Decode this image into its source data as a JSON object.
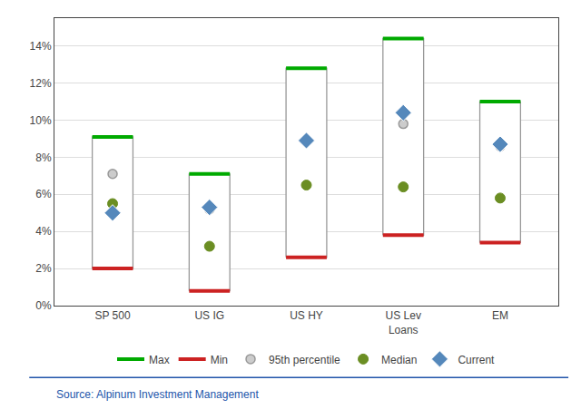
{
  "chart_data": {
    "type": "range",
    "categories": [
      "SP 500",
      "US IG",
      "US HY",
      "US Lev\nLoans",
      "EM"
    ],
    "color": "#999999",
    "series": [
      {
        "name": "Max",
        "color": "#00aa00",
        "values": [
          0.091,
          0.071,
          0.128,
          0.144,
          0.11
        ]
      },
      {
        "name": "Min",
        "color": "#cc2222",
        "values": [
          0.02,
          0.008,
          0.026,
          0.038,
          0.034
        ]
      },
      {
        "name": "95th percentile",
        "color": "#999999",
        "marker": "circle",
        "values": [
          0.071,
          0.052,
          0.089,
          0.098,
          0.086
        ]
      },
      {
        "name": "Median",
        "color": "#6b8e23",
        "marker": "circle",
        "values": [
          0.055,
          0.032,
          0.065,
          0.064,
          0.058
        ]
      },
      {
        "name": "Current",
        "color": "#5588bb",
        "marker": "diamond",
        "values": [
          0.05,
          0.053,
          0.089,
          0.104,
          0.087
        ]
      }
    ],
    "ylim": [
      0,
      0.155
    ],
    "yticks": [
      {
        "value": 0,
        "label": "0%"
      },
      {
        "value": 0.02,
        "label": "2%"
      },
      {
        "value": 0.04,
        "label": "4%"
      },
      {
        "value": 0.06,
        "label": "6%"
      },
      {
        "value": 0.08,
        "label": "8%"
      },
      {
        "value": 0.1,
        "label": "10%"
      },
      {
        "value": 0.12,
        "label": "12%"
      },
      {
        "value": 0.14,
        "label": "14%"
      }
    ],
    "grid": true,
    "legend": "bottom",
    "annotations": [
      {
        "text": "Source: Alpinum Investment Management",
        "color": "#2255aa"
      }
    ]
  }
}
